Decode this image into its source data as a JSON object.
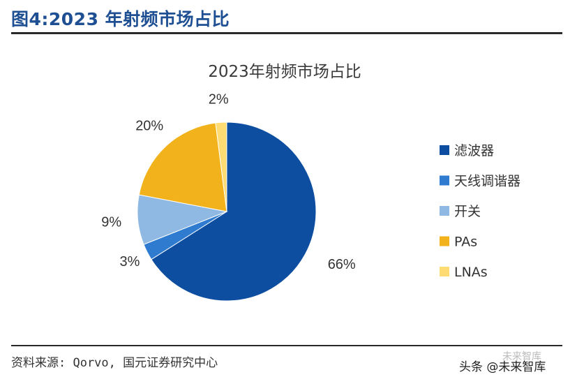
{
  "figure_title": "图4:2023 年射频市场占比",
  "source": "资料来源: Qorvo, 国元证券研究中心",
  "watermark": "头条 @未来智库",
  "watermark_faint": "未来智库",
  "chart_data": {
    "type": "pie",
    "title": "2023年射频市场占比",
    "start_angle_deg": 0,
    "direction": "clockwise",
    "legend_position": "right",
    "slices": [
      {
        "name": "滤波器",
        "value": 66,
        "label": "66%",
        "color": "#0d4ea1"
      },
      {
        "name": "天线调谐器",
        "value": 3,
        "label": "3%",
        "color": "#2f7bd0"
      },
      {
        "name": "开关",
        "value": 9,
        "label": "9%",
        "color": "#8fb9e3"
      },
      {
        "name": "PAs",
        "value": 20,
        "label": "20%",
        "color": "#f2b21c"
      },
      {
        "name": "LNAs",
        "value": 2,
        "label": "2%",
        "color": "#ffdc73"
      }
    ]
  }
}
